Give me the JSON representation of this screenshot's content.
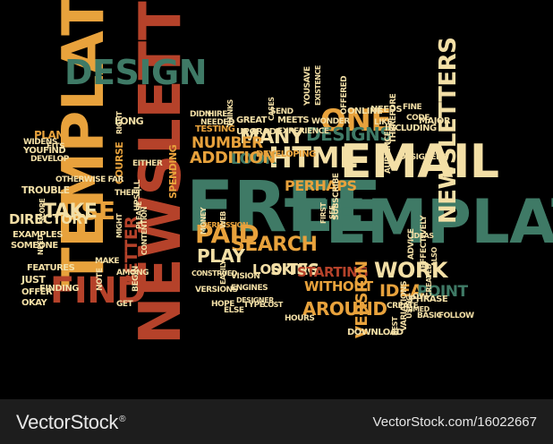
{
  "colors": {
    "green": "#3f7a66",
    "cream": "#f3dfa6",
    "orange": "#e8a23c",
    "red": "#b5422a",
    "background": "#000000",
    "footer": "#1d1d1d"
  },
  "words": [
    {
      "t": "FREE",
      "c": "green"
    },
    {
      "t": "TEMPLATES",
      "c": "green"
    },
    {
      "t": "TEMPLATE",
      "c": "orange"
    },
    {
      "t": "NEWSLETTER",
      "c": "red"
    },
    {
      "t": "EMAIL",
      "c": "cream"
    },
    {
      "t": "NEWSLETTERS",
      "c": "cream"
    },
    {
      "t": "DESIGN",
      "c": "green"
    },
    {
      "t": "FIND",
      "c": "red"
    },
    {
      "t": "ONE",
      "c": "orange"
    },
    {
      "t": "HTML",
      "c": "cream"
    },
    {
      "t": "DESIGNS",
      "c": "green"
    },
    {
      "t": "USE",
      "c": "orange"
    },
    {
      "t": "MANY",
      "c": "cream"
    },
    {
      "t": "PAID",
      "c": "orange"
    },
    {
      "t": "SEARCH",
      "c": "orange"
    },
    {
      "t": "TAKE",
      "c": "cream"
    },
    {
      "t": "DIRECTORY",
      "c": "cream"
    },
    {
      "t": "PERHAPS",
      "c": "orange"
    },
    {
      "t": "LOOK",
      "c": "green"
    },
    {
      "t": "ADDITION",
      "c": "orange"
    },
    {
      "t": "NUMBER",
      "c": "orange"
    },
    {
      "t": "PLAY",
      "c": "cream"
    },
    {
      "t": "LOOKING",
      "c": "cream"
    },
    {
      "t": "SITES",
      "c": "cream"
    },
    {
      "t": "AROUND",
      "c": "orange"
    },
    {
      "t": "STARTING",
      "c": "red"
    },
    {
      "t": "WITHOUT",
      "c": "orange"
    },
    {
      "t": "VERSION",
      "c": "orange"
    },
    {
      "t": "WORK",
      "c": "cream"
    },
    {
      "t": "IDEA",
      "c": "orange"
    },
    {
      "t": "POINT",
      "c": "green"
    },
    {
      "t": "BETTER",
      "c": "red"
    },
    {
      "t": "PLAN",
      "c": "orange"
    },
    {
      "t": "LONG",
      "c": "cream"
    },
    {
      "t": "COURSE",
      "c": "orange"
    },
    {
      "t": "SPENDING",
      "c": "orange"
    },
    {
      "t": "TESTING",
      "c": "orange"
    },
    {
      "t": "UPGRADE",
      "c": "cream"
    },
    {
      "t": "DEVELOPING",
      "c": "orange"
    },
    {
      "t": "SEND",
      "c": "cream"
    },
    {
      "t": "ONLINE",
      "c": "cream"
    },
    {
      "t": "NEEDS",
      "c": "cream"
    },
    {
      "t": "FINE",
      "c": "cream"
    },
    {
      "t": "MAJOR",
      "c": "cream"
    },
    {
      "t": "INCLUDING",
      "c": "cream"
    },
    {
      "t": "GREAT",
      "c": "cream"
    },
    {
      "t": "MEETS",
      "c": "cream"
    },
    {
      "t": "DOWNLOAD",
      "c": "cream"
    },
    {
      "t": "HOURS",
      "c": "cream"
    },
    {
      "t": "CREATE",
      "c": "cream"
    },
    {
      "t": "PHRASE",
      "c": "cream"
    },
    {
      "t": "BASIC",
      "c": "cream"
    },
    {
      "t": "FOLLOW",
      "c": "cream"
    },
    {
      "t": "LOW",
      "c": "cream"
    },
    {
      "t": "ELSE",
      "c": "cream"
    },
    {
      "t": "HOPE",
      "c": "cream"
    },
    {
      "t": "TYPE",
      "c": "cream"
    },
    {
      "t": "COST",
      "c": "cream"
    },
    {
      "t": "ENGINES",
      "c": "cream"
    },
    {
      "t": "VERSIONS",
      "c": "cream"
    },
    {
      "t": "VISION",
      "c": "cream"
    },
    {
      "t": "CONSTRUED",
      "c": "cream"
    },
    {
      "t": "PERMISSION",
      "c": "orange"
    },
    {
      "t": "EXAMPLES",
      "c": "cream"
    },
    {
      "t": "SOMEONE",
      "c": "cream"
    },
    {
      "t": "FEATURES",
      "c": "cream"
    },
    {
      "t": "JUST",
      "c": "cream"
    },
    {
      "t": "OFFER",
      "c": "cream"
    },
    {
      "t": "OKAY",
      "c": "cream"
    },
    {
      "t": "FINDING",
      "c": "cream"
    },
    {
      "t": "TROUBLE",
      "c": "cream"
    },
    {
      "t": "WIDENS",
      "c": "cream"
    },
    {
      "t": "FITS",
      "c": "cream"
    },
    {
      "t": "YOUFIND",
      "c": "cream"
    },
    {
      "t": "DEVELOP",
      "c": "cream"
    },
    {
      "t": "OTHERWISE FAR",
      "c": "cream"
    },
    {
      "t": "THEFT",
      "c": "cream"
    },
    {
      "t": "UPSELL",
      "c": "cream"
    },
    {
      "t": "EXISTENCE",
      "c": "cream"
    },
    {
      "t": "WONDER",
      "c": "cream"
    },
    {
      "t": "YOUSAVE",
      "c": "cream"
    },
    {
      "t": "EXPERIENCE",
      "c": "cream"
    },
    {
      "t": "CASES",
      "c": "cream"
    },
    {
      "t": "THINKS",
      "c": "cream"
    },
    {
      "t": "DIDN",
      "c": "cream"
    },
    {
      "t": "HIRE",
      "c": "cream"
    },
    {
      "t": "NEEDED",
      "c": "cream"
    },
    {
      "t": "OFFERED",
      "c": "cream"
    },
    {
      "t": "LIKE",
      "c": "cream"
    },
    {
      "t": "CODE",
      "c": "cream"
    },
    {
      "t": "DESIGNERS",
      "c": "cream"
    },
    {
      "t": "THEREFORE",
      "c": "cream"
    },
    {
      "t": "AUDIENCE",
      "c": "cream"
    },
    {
      "t": "SUBSCRIBE",
      "c": "cream"
    },
    {
      "t": "SEE",
      "c": "cream"
    },
    {
      "t": "IDEAS",
      "c": "cream"
    },
    {
      "t": "ADVICE",
      "c": "cream"
    },
    {
      "t": "EFFECTIVELY",
      "c": "cream"
    },
    {
      "t": "ALSO",
      "c": "cream"
    },
    {
      "t": "VARIATIONS",
      "c": "cream"
    },
    {
      "t": "USING",
      "c": "cream"
    },
    {
      "t": "BEST",
      "c": "cream"
    },
    {
      "t": "AIMED",
      "c": "cream"
    },
    {
      "t": "DESIGNER",
      "c": "cream"
    },
    {
      "t": "EASILY",
      "c": "cream"
    },
    {
      "t": "NOTE",
      "c": "cream"
    },
    {
      "t": "GET",
      "c": "cream"
    },
    {
      "t": "BEGIN",
      "c": "cream"
    },
    {
      "t": "AMONG",
      "c": "cream"
    },
    {
      "t": "MAKE",
      "c": "cream"
    },
    {
      "t": "WEB",
      "c": "cream"
    },
    {
      "t": "MONEY",
      "c": "cream"
    },
    {
      "t": "FIRST",
      "c": "cream"
    },
    {
      "t": "EITHER",
      "c": "cream"
    },
    {
      "t": "MIGHT",
      "c": "cream"
    },
    {
      "t": "PLEASE",
      "c": "cream"
    },
    {
      "t": "CONTENTION",
      "c": "cream"
    },
    {
      "t": "SCOPE",
      "c": "cream"
    },
    {
      "t": "NEED",
      "c": "cream"
    },
    {
      "t": "CREATED",
      "c": "cream"
    },
    {
      "t": "RIGHT",
      "c": "cream"
    }
  ],
  "footer": {
    "logo": "VectorStock",
    "logo_mark": "®",
    "url": "VectorStock.com/16022667"
  }
}
